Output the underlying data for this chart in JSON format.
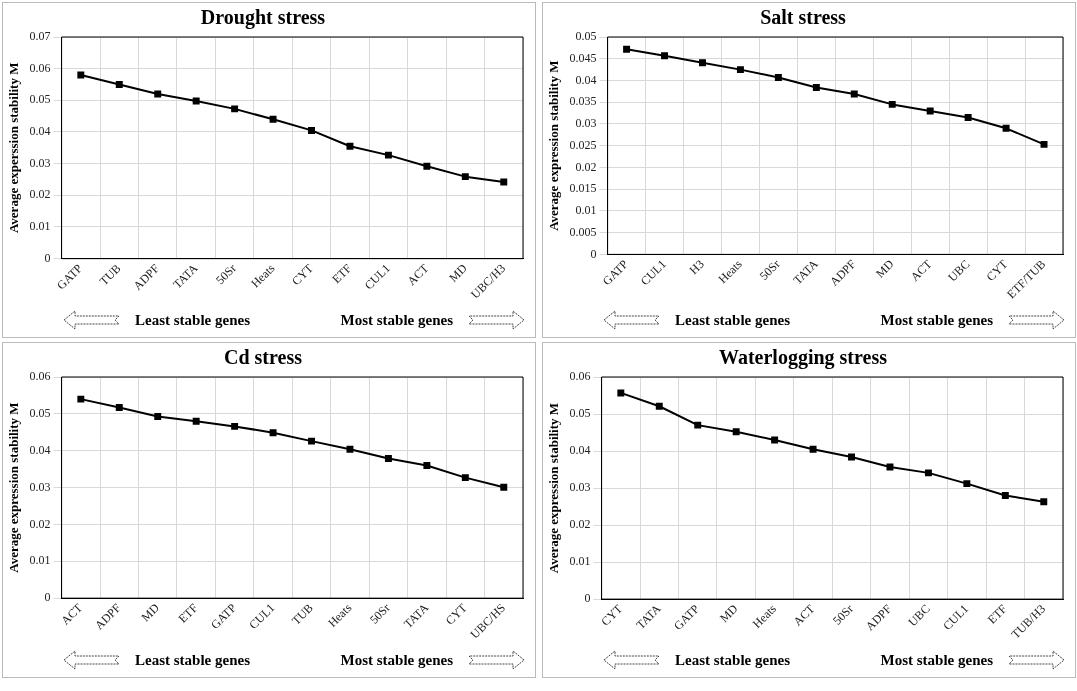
{
  "chart_data": [
    {
      "type": "line",
      "title": "Drought stress",
      "ylabel": "Average experssion stability M",
      "categories": [
        "GATP",
        "TUB",
        "ADPF",
        "TATA",
        "50Sr",
        "Heats",
        "CYT",
        "ETF",
        "CUL1",
        "ACT",
        "MD",
        "UBC/H3"
      ],
      "series": [
        {
          "color": "#000000",
          "values": [
            0.058,
            0.055,
            0.052,
            0.0498,
            0.0473,
            0.044,
            0.0405,
            0.0355,
            0.0327,
            0.0292,
            0.0259,
            0.0242
          ]
        }
      ],
      "ylim": [
        0,
        0.07
      ],
      "yticks": [
        0,
        0.01,
        0.02,
        0.03,
        0.04,
        0.05,
        0.06,
        0.07
      ],
      "grid": true,
      "marker": "square",
      "line_style": "solid",
      "annotations": [
        "Least stable genes",
        "Most stable genes"
      ]
    },
    {
      "type": "line",
      "title": "Salt stress",
      "ylabel": "Average expression stability M",
      "categories": [
        "GATP",
        "CUL1",
        "H3",
        "Heats",
        "50Sr",
        "TATA",
        "ADPF",
        "MD",
        "ACT",
        "UBC",
        "CYT",
        "ETF/TUB"
      ],
      "series": [
        {
          "color": "#000000",
          "values": [
            0.0472,
            0.0457,
            0.0441,
            0.0425,
            0.0407,
            0.0384,
            0.0369,
            0.0345,
            0.033,
            0.0315,
            0.029,
            0.0253
          ]
        }
      ],
      "ylim": [
        0,
        0.05
      ],
      "yticks": [
        0,
        0.005,
        0.01,
        0.015,
        0.02,
        0.025,
        0.03,
        0.035,
        0.04,
        0.045,
        0.05
      ],
      "grid": true,
      "marker": "square",
      "line_style": "solid",
      "annotations": [
        "Least stable genes",
        "Most stable genes"
      ]
    },
    {
      "type": "line",
      "title": "Cd stress",
      "ylabel": "Average expression stability M",
      "categories": [
        "ACT",
        "ADPF",
        "MD",
        "ETF",
        "GATP",
        "CUL1",
        "TUB",
        "Heats",
        "50Sr",
        "TATA",
        "CYT",
        "UBC/HS"
      ],
      "series": [
        {
          "color": "#000000",
          "values": [
            0.054,
            0.0517,
            0.0493,
            0.048,
            0.0466,
            0.0449,
            0.0426,
            0.0404,
            0.0379,
            0.036,
            0.0327,
            0.0301
          ]
        }
      ],
      "ylim": [
        0,
        0.06
      ],
      "yticks": [
        0,
        0.01,
        0.02,
        0.03,
        0.04,
        0.05,
        0.06
      ],
      "grid": true,
      "marker": "square",
      "line_style": "solid",
      "annotations": [
        "Least stable genes",
        "Most stable genes"
      ]
    },
    {
      "type": "line",
      "title": "Waterlogging stress",
      "ylabel": "Average expression stability M",
      "categories": [
        "CYT",
        "TATA",
        "GATP",
        "MD",
        "Heats",
        "ACT",
        "50Sr",
        "ADPF",
        "UBC",
        "CUL1",
        "ETF",
        "TUB/H3"
      ],
      "series": [
        {
          "color": "#000000",
          "values": [
            0.0557,
            0.0521,
            0.047,
            0.0452,
            0.043,
            0.0405,
            0.0384,
            0.0357,
            0.0341,
            0.0312,
            0.028,
            0.0263
          ]
        }
      ],
      "ylim": [
        0,
        0.06
      ],
      "yticks": [
        0,
        0.01,
        0.02,
        0.03,
        0.04,
        0.05,
        0.06
      ],
      "grid": true,
      "marker": "square",
      "line_style": "solid",
      "annotations": [
        "Least stable genes",
        "Most stable genes"
      ]
    }
  ]
}
